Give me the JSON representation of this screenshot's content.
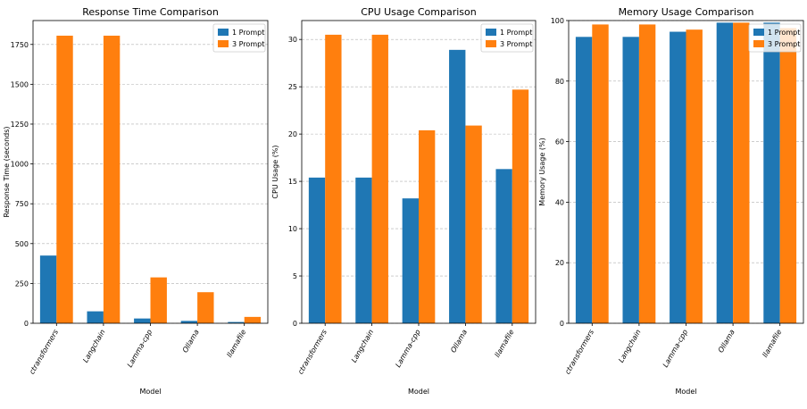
{
  "colors": {
    "one_prompt": "#1f77b4",
    "three_prompt": "#ff7f0e",
    "grid": "#b0b0b0"
  },
  "chart_data": [
    {
      "type": "bar",
      "title": "Response Time Comparison",
      "xlabel": "Model",
      "ylabel": "Response Time (seconds)",
      "categories": [
        "ctransformers",
        "Langchain",
        "Lamma-cpp",
        "Ollama",
        "llamafile"
      ],
      "series": [
        {
          "name": "1 Prompt",
          "values": [
            425,
            75,
            30,
            15,
            8
          ]
        },
        {
          "name": "3 Prompt",
          "values": [
            1805,
            1805,
            288,
            195,
            40
          ]
        }
      ],
      "ylim": [
        0,
        1900
      ],
      "yticks": [
        0,
        250,
        500,
        750,
        1000,
        1250,
        1500,
        1750
      ],
      "grid": "y-dashed",
      "legend": "top-right"
    },
    {
      "type": "bar",
      "title": "CPU Usage Comparison",
      "xlabel": "Model",
      "ylabel": "CPU Usage (%)",
      "categories": [
        "ctransformers",
        "Langchain",
        "Lamma-cpp",
        "Ollama",
        "llamafile"
      ],
      "series": [
        {
          "name": "1 Prompt",
          "values": [
            15.4,
            15.4,
            13.2,
            28.9,
            16.3
          ]
        },
        {
          "name": "3 Prompt",
          "values": [
            30.5,
            30.5,
            20.4,
            20.9,
            24.7
          ]
        }
      ],
      "ylim": [
        0,
        32
      ],
      "yticks": [
        0,
        5,
        10,
        15,
        20,
        25,
        30
      ],
      "grid": "y-dashed",
      "legend": "top-right"
    },
    {
      "type": "bar",
      "title": "Memory Usage Comparison",
      "xlabel": "Model",
      "ylabel": "Memory Usage (%)",
      "categories": [
        "ctransformers",
        "Langchain",
        "Lamma-cpp",
        "Ollama",
        "llamafile"
      ],
      "series": [
        {
          "name": "1 Prompt",
          "values": [
            94.6,
            94.6,
            96.3,
            99.3,
            99.3
          ]
        },
        {
          "name": "3 Prompt",
          "values": [
            98.7,
            98.7,
            97.0,
            99.3,
            97.5
          ]
        }
      ],
      "ylim": [
        0,
        100
      ],
      "yticks": [
        0,
        20,
        40,
        60,
        80,
        100
      ],
      "grid": "y-dashed",
      "legend": "top-right"
    }
  ]
}
